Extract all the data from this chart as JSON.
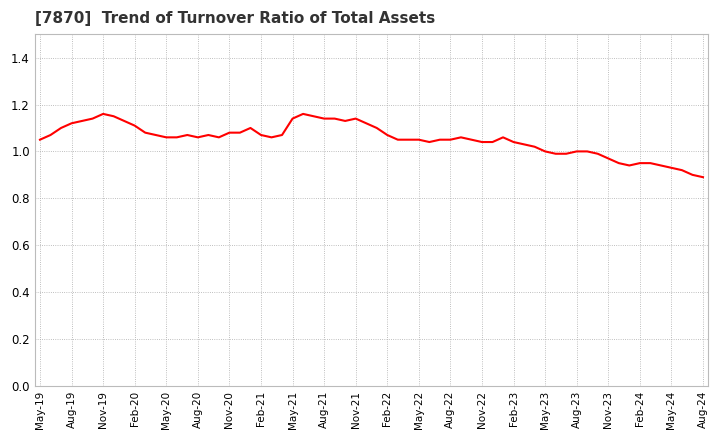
{
  "title": "[7870]  Trend of Turnover Ratio of Total Assets",
  "title_fontsize": 11,
  "line_color": "#FF0000",
  "line_width": 1.5,
  "background_color": "#FFFFFF",
  "plot_bg_color": "#FFFFFF",
  "grid_color": "#AAAAAA",
  "ylim": [
    0.0,
    1.5
  ],
  "yticks": [
    0.0,
    0.2,
    0.4,
    0.6,
    0.8,
    1.0,
    1.2,
    1.4
  ],
  "values": [
    1.05,
    1.07,
    1.1,
    1.12,
    1.13,
    1.14,
    1.16,
    1.15,
    1.13,
    1.11,
    1.08,
    1.07,
    1.06,
    1.06,
    1.07,
    1.06,
    1.07,
    1.06,
    1.08,
    1.08,
    1.1,
    1.07,
    1.06,
    1.07,
    1.14,
    1.16,
    1.15,
    1.14,
    1.14,
    1.13,
    1.14,
    1.12,
    1.1,
    1.07,
    1.05,
    1.05,
    1.05,
    1.04,
    1.05,
    1.05,
    1.06,
    1.05,
    1.04,
    1.04,
    1.06,
    1.04,
    1.03,
    1.02,
    1.0,
    0.99,
    0.99,
    1.0,
    1.0,
    0.99,
    0.97,
    0.95,
    0.94,
    0.95,
    0.95,
    0.94,
    0.93,
    0.92,
    0.9,
    0.89
  ],
  "xtick_labels": [
    "May-19",
    "Aug-19",
    "Nov-19",
    "Feb-20",
    "May-20",
    "Aug-20",
    "Nov-20",
    "Feb-21",
    "May-21",
    "Aug-21",
    "Nov-21",
    "Feb-22",
    "May-22",
    "Aug-22",
    "Nov-22",
    "Feb-23",
    "May-23",
    "Aug-23",
    "Nov-23",
    "Feb-24",
    "May-24",
    "Aug-24"
  ],
  "xtick_positions": [
    0,
    3,
    6,
    9,
    12,
    15,
    18,
    21,
    24,
    27,
    30,
    33,
    36,
    39,
    42,
    45,
    48,
    51,
    54,
    57,
    60,
    63
  ]
}
